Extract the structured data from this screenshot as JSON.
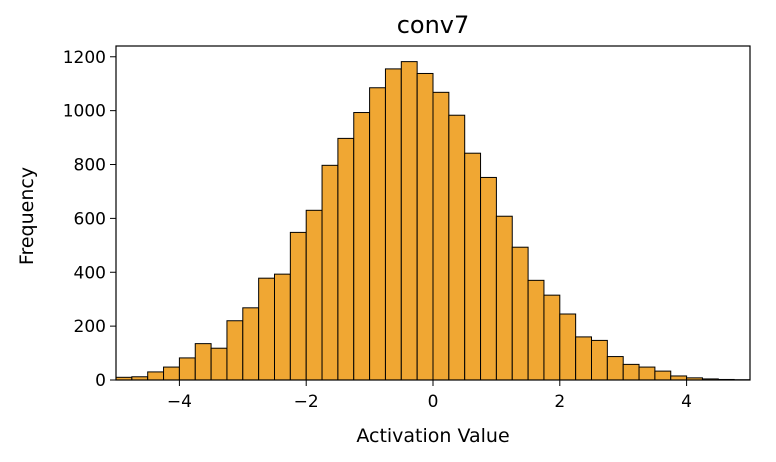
{
  "chart_data": {
    "type": "bar",
    "title": "conv7",
    "xlabel": "Activation Value",
    "ylabel": "Frequency",
    "xlim": [
      -5,
      5
    ],
    "ylim": [
      0,
      1240
    ],
    "xticks": [
      -4,
      -2,
      0,
      2,
      4
    ],
    "xtick_labels": [
      "−4",
      "−2",
      "0",
      "2",
      "4"
    ],
    "yticks": [
      0,
      200,
      400,
      600,
      800,
      1000,
      1200
    ],
    "ytick_labels": [
      "0",
      "200",
      "400",
      "600",
      "800",
      "1000",
      "1200"
    ],
    "grid": false,
    "bar_color": "#f0a733",
    "edge_color": "#000000",
    "bins": [
      {
        "x0": -5.0,
        "x1": -4.75,
        "value": 10
      },
      {
        "x0": -4.75,
        "x1": -4.5,
        "value": 12
      },
      {
        "x0": -4.5,
        "x1": -4.25,
        "value": 30
      },
      {
        "x0": -4.25,
        "x1": -4.0,
        "value": 48
      },
      {
        "x0": -4.0,
        "x1": -3.75,
        "value": 82
      },
      {
        "x0": -3.75,
        "x1": -3.5,
        "value": 135
      },
      {
        "x0": -3.5,
        "x1": -3.25,
        "value": 118
      },
      {
        "x0": -3.25,
        "x1": -3.0,
        "value": 220
      },
      {
        "x0": -3.0,
        "x1": -2.75,
        "value": 268
      },
      {
        "x0": -2.75,
        "x1": -2.5,
        "value": 378
      },
      {
        "x0": -2.5,
        "x1": -2.25,
        "value": 393
      },
      {
        "x0": -2.25,
        "x1": -2.0,
        "value": 548
      },
      {
        "x0": -2.0,
        "x1": -1.75,
        "value": 630
      },
      {
        "x0": -1.75,
        "x1": -1.5,
        "value": 797
      },
      {
        "x0": -1.5,
        "x1": -1.25,
        "value": 897
      },
      {
        "x0": -1.25,
        "x1": -1.0,
        "value": 993
      },
      {
        "x0": -1.0,
        "x1": -0.75,
        "value": 1085
      },
      {
        "x0": -0.75,
        "x1": -0.5,
        "value": 1155
      },
      {
        "x0": -0.5,
        "x1": -0.25,
        "value": 1182
      },
      {
        "x0": -0.25,
        "x1": 0.0,
        "value": 1138
      },
      {
        "x0": 0.0,
        "x1": 0.25,
        "value": 1068
      },
      {
        "x0": 0.25,
        "x1": 0.5,
        "value": 983
      },
      {
        "x0": 0.5,
        "x1": 0.75,
        "value": 842
      },
      {
        "x0": 0.75,
        "x1": 1.0,
        "value": 752
      },
      {
        "x0": 1.0,
        "x1": 1.25,
        "value": 608
      },
      {
        "x0": 1.25,
        "x1": 1.5,
        "value": 493
      },
      {
        "x0": 1.5,
        "x1": 1.75,
        "value": 370
      },
      {
        "x0": 1.75,
        "x1": 2.0,
        "value": 315
      },
      {
        "x0": 2.0,
        "x1": 2.25,
        "value": 245
      },
      {
        "x0": 2.25,
        "x1": 2.5,
        "value": 160
      },
      {
        "x0": 2.5,
        "x1": 2.75,
        "value": 147
      },
      {
        "x0": 2.75,
        "x1": 3.0,
        "value": 87
      },
      {
        "x0": 3.0,
        "x1": 3.25,
        "value": 58
      },
      {
        "x0": 3.25,
        "x1": 3.5,
        "value": 48
      },
      {
        "x0": 3.5,
        "x1": 3.75,
        "value": 33
      },
      {
        "x0": 3.75,
        "x1": 4.0,
        "value": 15
      },
      {
        "x0": 4.0,
        "x1": 4.25,
        "value": 8
      },
      {
        "x0": 4.25,
        "x1": 4.5,
        "value": 4
      },
      {
        "x0": 4.5,
        "x1": 4.75,
        "value": 2
      },
      {
        "x0": 4.75,
        "x1": 5.0,
        "value": 1
      }
    ]
  }
}
